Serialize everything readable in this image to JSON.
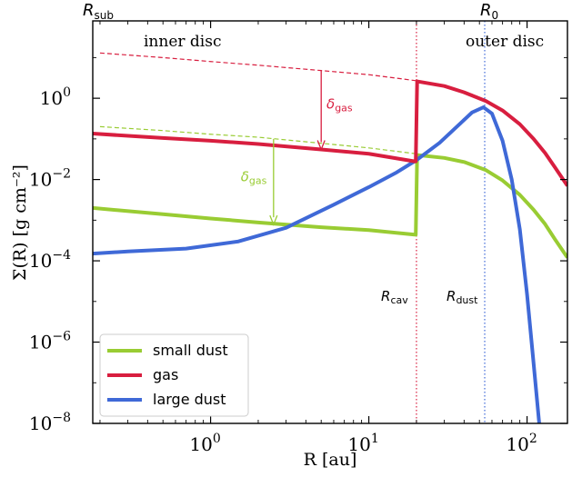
{
  "chart_data": {
    "type": "line",
    "title": "",
    "xlabel": "R [au]",
    "ylabel": "Σ(R) [g cm⁻²]",
    "x_scale": "log",
    "y_scale": "log",
    "xlim": [
      0.18,
      180
    ],
    "ylim": [
      1e-08,
      80
    ],
    "x_ticks": [
      {
        "value": 1,
        "base": "10",
        "exp": "0"
      },
      {
        "value": 10,
        "base": "10",
        "exp": "1"
      },
      {
        "value": 100,
        "base": "10",
        "exp": "2"
      }
    ],
    "y_ticks": [
      {
        "value": 1e-08,
        "base": "10",
        "exp": "−8"
      },
      {
        "value": 1e-06,
        "base": "10",
        "exp": "−6"
      },
      {
        "value": 0.0001,
        "base": "10",
        "exp": "−4"
      },
      {
        "value": 0.01,
        "base": "10",
        "exp": "−2"
      },
      {
        "value": 1,
        "base": "10",
        "exp": "0"
      }
    ],
    "series": [
      {
        "name": "small dust",
        "color": "#99cc33",
        "x": [
          0.18,
          0.5,
          1,
          2,
          5,
          10,
          19.5,
          19.8,
          20.2,
          30,
          40,
          55,
          70,
          90,
          110,
          130,
          150,
          180
        ],
        "y": [
          0.002,
          0.0014,
          0.0011,
          0.00088,
          0.00067,
          0.00057,
          0.00044,
          0.00044,
          0.04,
          0.034,
          0.027,
          0.017,
          0.0095,
          0.0042,
          0.0018,
          0.0008,
          0.00034,
          0.00012
        ]
      },
      {
        "name": "gas",
        "color": "#d81e3f",
        "x": [
          0.18,
          0.5,
          1,
          2,
          5,
          10,
          19.5,
          19.8,
          20.2,
          30,
          40,
          55,
          70,
          90,
          110,
          130,
          150,
          180
        ],
        "y": [
          0.135,
          0.105,
          0.09,
          0.075,
          0.055,
          0.043,
          0.028,
          0.028,
          2.6,
          2.0,
          1.4,
          0.85,
          0.5,
          0.23,
          0.1,
          0.045,
          0.02,
          0.007
        ]
      },
      {
        "name": "large dust",
        "color": "#3f69d7",
        "x": [
          0.18,
          0.3,
          0.7,
          1.5,
          3,
          6,
          10,
          15,
          20,
          28,
          36,
          45,
          53,
          60,
          70,
          80,
          90,
          100,
          110,
          120,
          128
        ],
        "y": [
          0.00015,
          0.00017,
          0.0002,
          0.0003,
          0.00065,
          0.0024,
          0.0065,
          0.015,
          0.03,
          0.08,
          0.2,
          0.45,
          0.6,
          0.42,
          0.09,
          0.01,
          0.0006,
          1.5e-05,
          3e-07,
          8e-09,
          1e-09
        ]
      }
    ],
    "guides": [
      {
        "name": "gas reference",
        "color": "#d81e3f",
        "style": "dashed",
        "x": [
          0.2,
          0.5,
          1,
          2,
          5,
          10,
          20,
          30,
          45,
          55
        ],
        "y": [
          13,
          10,
          8,
          6.5,
          4.8,
          3.8,
          2.7,
          2.0,
          1.25,
          0.9
        ]
      },
      {
        "name": "small dust reference",
        "color": "#99cc33",
        "style": "dashed",
        "x": [
          0.2,
          0.5,
          1,
          2,
          5,
          10,
          20,
          30
        ],
        "y": [
          0.2,
          0.16,
          0.13,
          0.11,
          0.078,
          0.06,
          0.043,
          0.034
        ]
      }
    ],
    "vlines": [
      {
        "id": "r_cav",
        "x": 20,
        "color": "#d81e3f",
        "label_main": "R",
        "label_sub": "cav"
      },
      {
        "id": "r_dust",
        "x": 54,
        "color": "#3f69d7",
        "label_main": "R",
        "label_sub": "dust"
      }
    ],
    "arrows": [
      {
        "id": "delta-gas-arrow",
        "x": 5,
        "y_from": 4.8,
        "y_to": 0.055,
        "color": "#d81e3f",
        "label_main": "δ",
        "label_sub": "gas",
        "label_x": 5.4,
        "label_y": 0.55
      },
      {
        "id": "delta-dust-arrow",
        "x": 2.5,
        "y_from": 0.1,
        "y_to": 0.00078,
        "color": "#99cc33",
        "label_main": "δ",
        "label_sub": "gas",
        "label_x": 1.55,
        "label_y": 0.009
      }
    ],
    "annotations": {
      "inner_disc": "inner disc",
      "outer_disc": "outer disc",
      "r_sub_main": "R",
      "r_sub_sub": "sub",
      "r0_main": "R",
      "r0_sub": "0"
    },
    "legend": {
      "position": "lower-left",
      "entries": [
        "small dust",
        "gas",
        "large dust"
      ]
    },
    "grid": false
  }
}
